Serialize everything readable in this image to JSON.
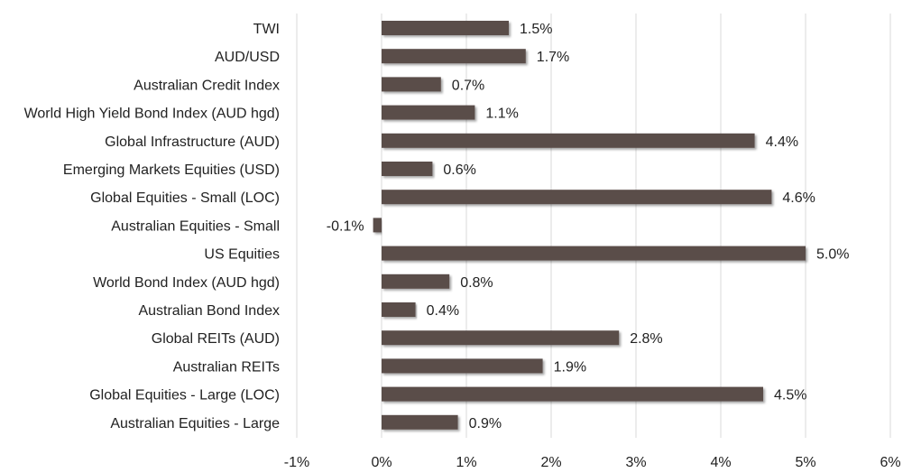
{
  "chart_data": {
    "type": "bar",
    "orientation": "horizontal",
    "categories": [
      "TWI",
      "AUD/USD",
      "Australian Credit Index",
      "World High Yield Bond Index (AUD hgd)",
      "Global Infrastructure (AUD)",
      "Emerging Markets Equities (USD)",
      "Global Equities - Small (LOC)",
      "Australian Equities - Small",
      "US Equities",
      "World Bond Index (AUD hgd)",
      "Australian Bond Index",
      "Global REITs (AUD)",
      "Australian REITs",
      "Global Equities - Large (LOC)",
      "Australian Equities - Large"
    ],
    "values": [
      1.5,
      1.7,
      0.7,
      1.1,
      4.4,
      0.6,
      4.6,
      -0.1,
      5.0,
      0.8,
      0.4,
      2.8,
      1.9,
      4.5,
      0.9
    ],
    "value_labels": [
      "1.5%",
      "1.7%",
      "0.7%",
      "1.1%",
      "4.4%",
      "0.6%",
      "4.6%",
      "-0.1%",
      "5.0%",
      "0.8%",
      "0.4%",
      "2.8%",
      "1.9%",
      "4.5%",
      "0.9%"
    ],
    "xlim": [
      -1,
      6
    ],
    "xticks": [
      -1,
      0,
      1,
      2,
      3,
      4,
      5,
      6
    ],
    "xtick_labels": [
      "-1%",
      "0%",
      "1%",
      "2%",
      "3%",
      "4%",
      "5%",
      "6%"
    ],
    "grid": "vertical",
    "legend": "none",
    "bar_color": "#5a4d4a",
    "gridline_color": "#d9d9d9"
  }
}
